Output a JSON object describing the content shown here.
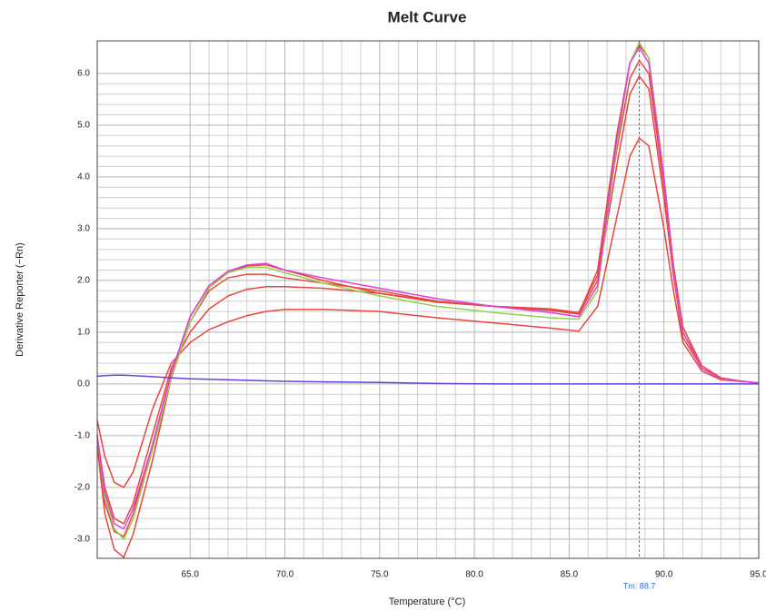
{
  "chart_data": {
    "type": "line",
    "title": "Melt Curve",
    "xlabel": "Temperature (°C)",
    "ylabel": "Derivative Reporter (−Rn)",
    "x": [
      60.1,
      60.5,
      61,
      61.5,
      62,
      63,
      64,
      65,
      66,
      67,
      68,
      69,
      70,
      72,
      75,
      78,
      81,
      84,
      85.5,
      86.5,
      87.5,
      88.2,
      88.7,
      89.2,
      90,
      90.5,
      91,
      92,
      93,
      94,
      95
    ],
    "series": [
      {
        "color": "#e8463c",
        "values": [
          -0.7,
          -1.4,
          -1.9,
          -2.0,
          -1.7,
          -0.5,
          0.4,
          0.8,
          1.05,
          1.2,
          1.32,
          1.4,
          1.44,
          1.44,
          1.4,
          1.28,
          1.18,
          1.08,
          1.02,
          1.5,
          3.2,
          4.4,
          4.75,
          4.6,
          3.0,
          1.8,
          0.8,
          0.25,
          0.08,
          0.05,
          0.02
        ]
      },
      {
        "color": "#e8463c",
        "values": [
          -1.0,
          -2.0,
          -2.6,
          -2.7,
          -2.3,
          -1.0,
          0.3,
          1.0,
          1.45,
          1.7,
          1.83,
          1.88,
          1.88,
          1.85,
          1.75,
          1.6,
          1.5,
          1.42,
          1.35,
          2.0,
          4.2,
          5.6,
          5.95,
          5.7,
          3.6,
          2.1,
          0.9,
          0.3,
          0.1,
          0.05,
          0.02
        ]
      },
      {
        "color": "#e8463c",
        "values": [
          -1.2,
          -2.5,
          -3.2,
          -3.35,
          -2.9,
          -1.5,
          0.1,
          1.2,
          1.8,
          2.05,
          2.12,
          2.12,
          2.05,
          1.95,
          1.8,
          1.6,
          1.5,
          1.45,
          1.38,
          2.1,
          4.5,
          5.9,
          6.25,
          6.0,
          3.8,
          2.2,
          1.0,
          0.35,
          0.1,
          0.05,
          0.02
        ]
      },
      {
        "color": "#e8463c",
        "values": [
          -1.1,
          -2.3,
          -2.85,
          -2.95,
          -2.5,
          -1.2,
          0.2,
          1.3,
          1.9,
          2.15,
          2.28,
          2.3,
          2.2,
          2.0,
          1.75,
          1.58,
          1.5,
          1.45,
          1.35,
          2.2,
          4.8,
          6.2,
          6.55,
          6.3,
          4.0,
          2.3,
          1.1,
          0.35,
          0.12,
          0.06,
          0.02
        ]
      },
      {
        "color": "#8fd14f",
        "values": [
          -1.0,
          -2.2,
          -2.8,
          -3.0,
          -2.6,
          -1.3,
          0.1,
          1.2,
          1.85,
          2.15,
          2.25,
          2.25,
          2.15,
          1.95,
          1.7,
          1.5,
          1.38,
          1.28,
          1.25,
          1.8,
          4.6,
          6.2,
          6.6,
          6.3,
          3.9,
          2.2,
          1.0,
          0.3,
          0.1,
          0.05,
          0.02
        ]
      },
      {
        "color": "#e040d8",
        "values": [
          -1.0,
          -2.1,
          -2.7,
          -2.8,
          -2.4,
          -1.2,
          0.2,
          1.3,
          1.9,
          2.18,
          2.3,
          2.33,
          2.2,
          2.05,
          1.85,
          1.65,
          1.5,
          1.38,
          1.3,
          1.9,
          4.7,
          6.2,
          6.5,
          6.2,
          3.9,
          2.2,
          1.0,
          0.3,
          0.1,
          0.05,
          0.02
        ]
      },
      {
        "color": "#6a3ee0",
        "values": [
          0.15,
          0.16,
          0.17,
          0.17,
          0.16,
          0.14,
          0.12,
          0.1,
          0.09,
          0.08,
          0.07,
          0.06,
          0.05,
          0.04,
          0.03,
          0.01,
          0,
          0,
          0,
          0,
          0,
          0,
          0,
          0,
          0,
          0,
          0,
          0,
          0,
          0,
          0
        ]
      }
    ],
    "xlim": [
      60.1,
      95
    ],
    "ylim": [
      -3.37,
      6.63
    ],
    "xticks": [
      {
        "value": 65,
        "label": "65.0"
      },
      {
        "value": 70,
        "label": "70.0"
      },
      {
        "value": 75,
        "label": "75.0"
      },
      {
        "value": 80,
        "label": "80.0"
      },
      {
        "value": 85,
        "label": "85.0"
      },
      {
        "value": 90,
        "label": "90.0"
      },
      {
        "value": 95,
        "label": "95.0"
      }
    ],
    "yticks": [
      {
        "value": -3,
        "label": "-3.0"
      },
      {
        "value": -2,
        "label": "-2.0"
      },
      {
        "value": -1,
        "label": "-1.0"
      },
      {
        "value": 0,
        "label": "0.0"
      },
      {
        "value": 1,
        "label": "1.0"
      },
      {
        "value": 2,
        "label": "2.0"
      },
      {
        "value": 3,
        "label": "3.0"
      },
      {
        "value": 4,
        "label": "4.0"
      },
      {
        "value": 5,
        "label": "5.0"
      },
      {
        "value": 6,
        "label": "6.0"
      }
    ],
    "grid": true,
    "annotation": {
      "text": "Tm: 88.7",
      "x": 88.7,
      "color": "#2a6ee0"
    }
  }
}
